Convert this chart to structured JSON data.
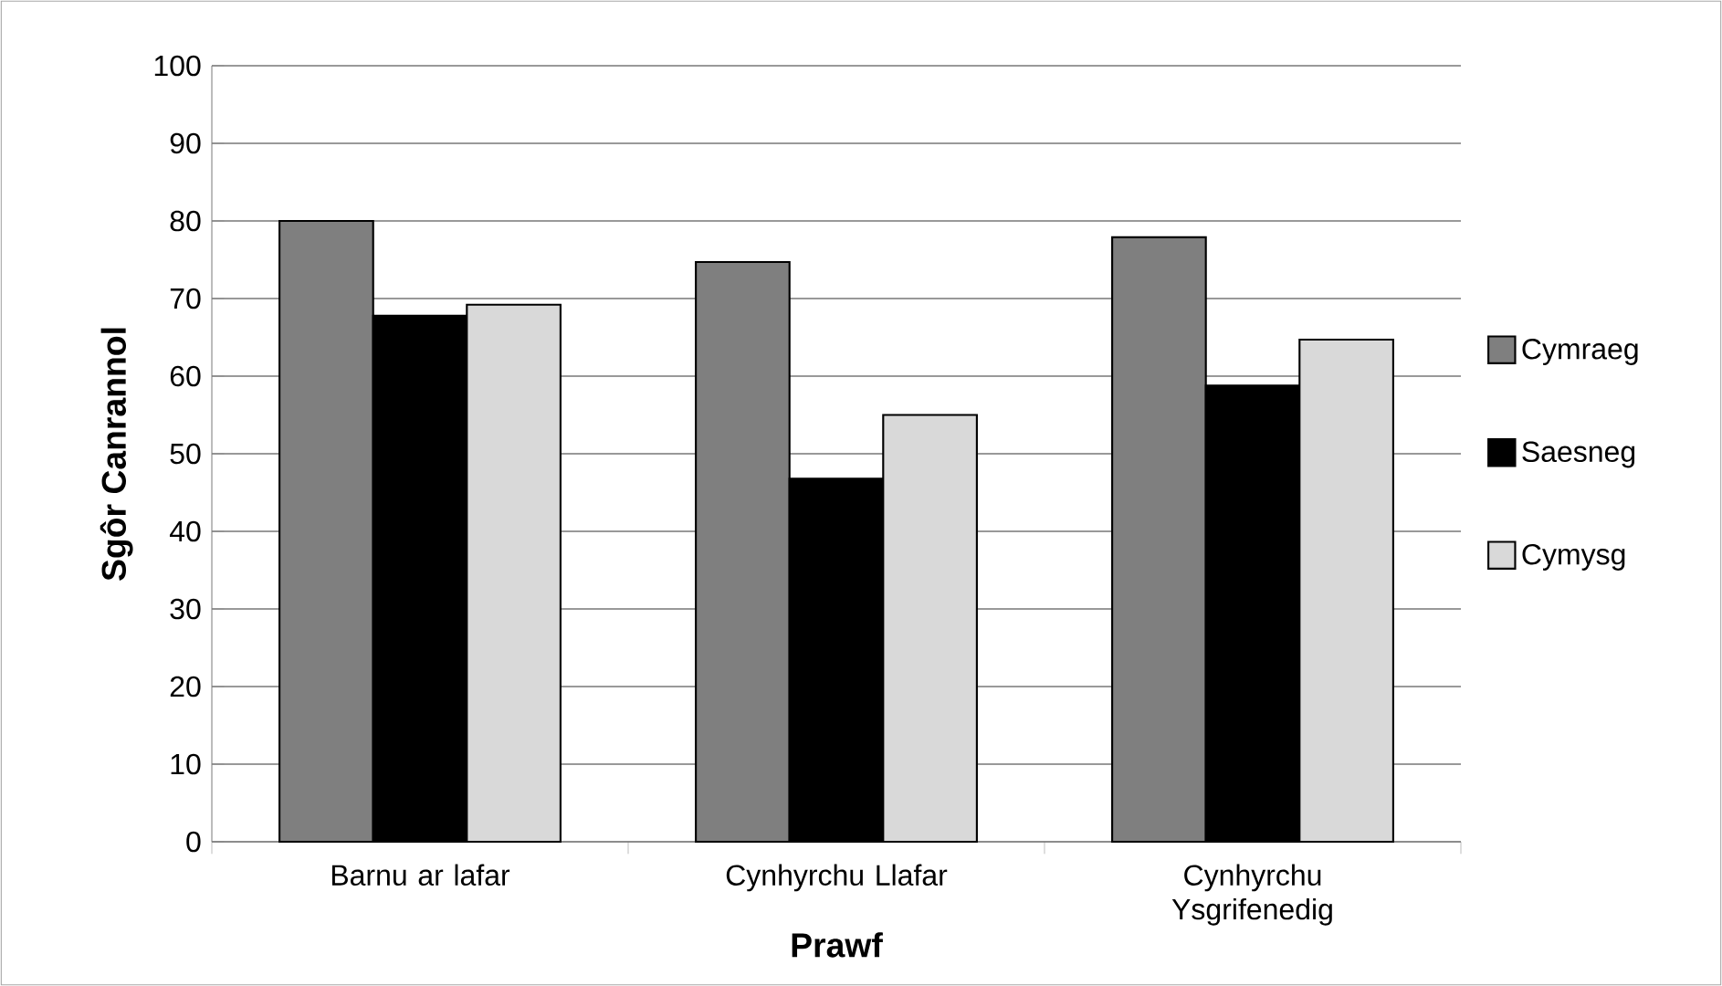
{
  "chart_data": {
    "type": "bar",
    "xlabel": "Prawf",
    "ylabel": "Sgôr Canrannol",
    "categories": [
      "Barnu ar lafar",
      "Cynhyrchu Llafar",
      "Cynhyrchu Ysgrifenedig"
    ],
    "series": [
      {
        "name": "Cymraeg",
        "color": "#7f7f7f",
        "values": [
          80.0,
          74.7,
          77.9
        ]
      },
      {
        "name": "Saesneg",
        "color": "#000000",
        "values": [
          67.8,
          46.8,
          58.8
        ]
      },
      {
        "name": "Cymysg",
        "color": "#d9d9d9",
        "values": [
          69.2,
          55.0,
          64.7
        ]
      }
    ],
    "ylim": [
      0,
      100
    ],
    "yticks": [
      0,
      10,
      20,
      30,
      40,
      50,
      60,
      70,
      80,
      90,
      100
    ],
    "grid": "y",
    "legend": "right"
  }
}
